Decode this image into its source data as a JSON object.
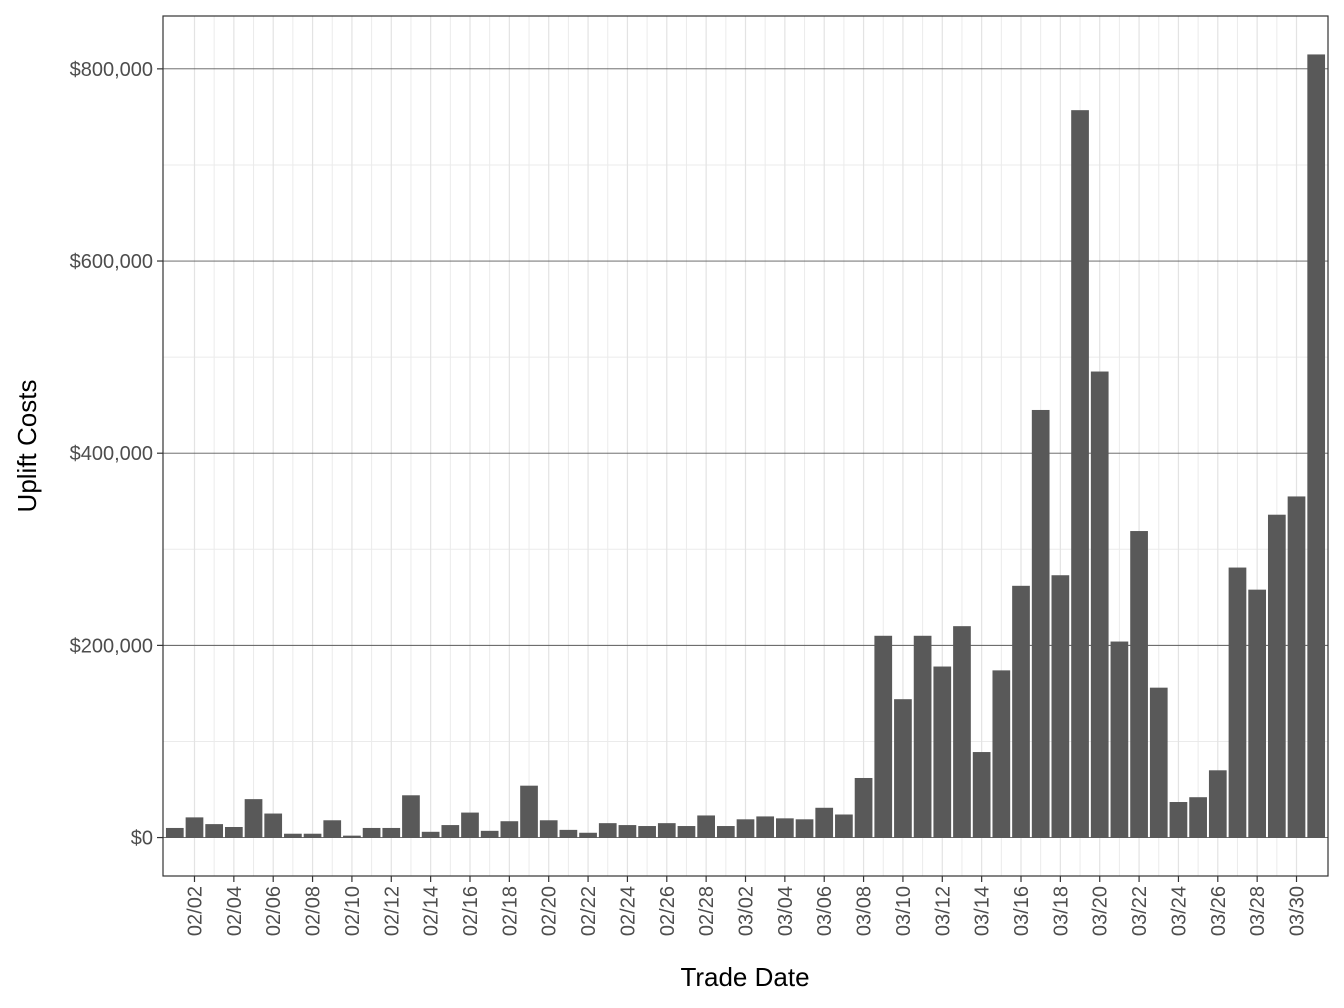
{
  "chart_data": {
    "type": "bar",
    "title": "",
    "xlabel": "Trade Date",
    "ylabel": "Uplift Costs",
    "ylim": [
      -40000,
      855000
    ],
    "y_ticks": [
      0,
      200000,
      400000,
      600000,
      800000
    ],
    "y_tick_labels": [
      "$0",
      "$200,000",
      "$400,000",
      "$600,000",
      "$800,000"
    ],
    "x_tick_labels": [
      "02/02",
      "02/04",
      "02/06",
      "02/08",
      "02/10",
      "02/12",
      "02/14",
      "02/16",
      "02/18",
      "02/20",
      "02/22",
      "02/24",
      "02/26",
      "02/28",
      "03/02",
      "03/04",
      "03/06",
      "03/08",
      "03/10",
      "03/12",
      "03/14",
      "03/16",
      "03/18",
      "03/20",
      "03/22",
      "03/24",
      "03/26",
      "03/28",
      "03/30"
    ],
    "grid": true,
    "bar_color": "#595959",
    "categories": [
      "02/01",
      "02/02",
      "02/03",
      "02/04",
      "02/05",
      "02/06",
      "02/07",
      "02/08",
      "02/09",
      "02/10",
      "02/11",
      "02/12",
      "02/13",
      "02/14",
      "02/15",
      "02/16",
      "02/17",
      "02/18",
      "02/19",
      "02/20",
      "02/21",
      "02/22",
      "02/23",
      "02/24",
      "02/25",
      "02/26",
      "02/27",
      "02/28",
      "03/01",
      "03/02",
      "03/03",
      "03/04",
      "03/05",
      "03/06",
      "03/07",
      "03/08",
      "03/09",
      "03/10",
      "03/11",
      "03/12",
      "03/13",
      "03/14",
      "03/15",
      "03/16",
      "03/17",
      "03/18",
      "03/19",
      "03/20",
      "03/21",
      "03/22",
      "03/23",
      "03/24",
      "03/25",
      "03/26",
      "03/27",
      "03/28",
      "03/29",
      "03/30",
      "03/31"
    ],
    "values": [
      10000,
      21000,
      14000,
      11000,
      40000,
      25000,
      4000,
      4000,
      18000,
      2000,
      10000,
      10000,
      44000,
      6000,
      13000,
      26000,
      7000,
      17000,
      54000,
      18000,
      8000,
      5000,
      15000,
      13000,
      12000,
      15000,
      12000,
      23000,
      12000,
      19000,
      22000,
      20000,
      19000,
      31000,
      24000,
      62000,
      210000,
      144000,
      210000,
      178000,
      220000,
      89000,
      174000,
      262000,
      445000,
      273000,
      757000,
      485000,
      204000,
      319000,
      156000,
      37000,
      42000,
      70000,
      281000,
      258000,
      336000,
      355000,
      815000
    ]
  }
}
